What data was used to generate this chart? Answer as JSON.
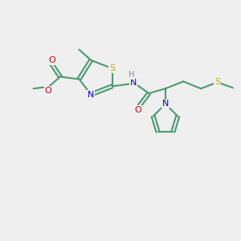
{
  "background_color": "#efefef",
  "bond_color": "#4a9a6e",
  "bond_width": 1.5,
  "atom_colors": {
    "S": "#c8a800",
    "N": "#0000cc",
    "O": "#cc0000",
    "H": "#888888",
    "C": "#4a9a6e"
  },
  "figsize": [
    3.0,
    3.0
  ],
  "dpi": 100,
  "xlim": [
    0,
    10
  ],
  "ylim": [
    0,
    10
  ]
}
